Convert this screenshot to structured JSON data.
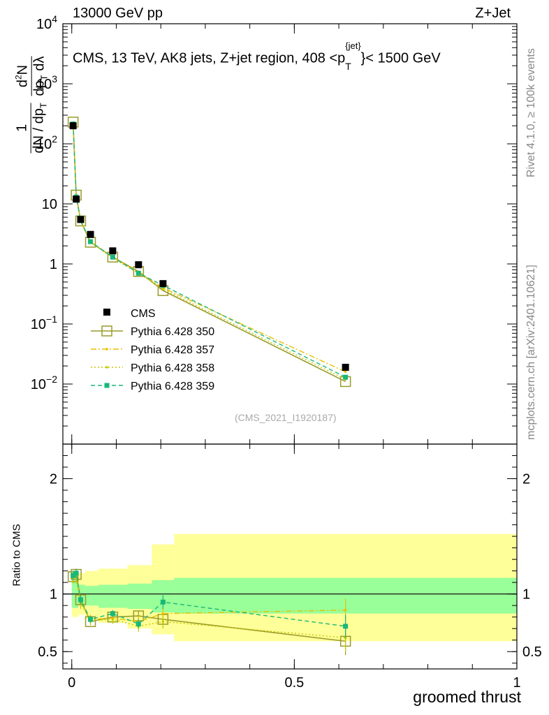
{
  "header": {
    "left": "13000 GeV pp",
    "right": "Z+Jet"
  },
  "side_labels": {
    "top": "Rivet 4.1.0, ≥ 100k events",
    "bottom": "mcplots.cern.ch [arXiv:2401.10621]"
  },
  "watermark": "(CMS_2021_I1920187)",
  "colors": {
    "cms": "#000000",
    "p350": "#9a9a2a",
    "p357": "#e8c000",
    "p358": "#c8c800",
    "p359": "#18b878",
    "band_inner": "#99ff99",
    "band_outer": "#ffff99"
  },
  "chart_data": [
    {
      "type": "line",
      "title": "CMS, 13 TeV, AK8 jets, Z+jet region, 408 <p_T^{jet}< 1500 GeV",
      "title_parts": {
        "main": "CMS, 13 TeV, AK8 jets, Z+jet region, 408 <p",
        "sup": "{jet}",
        "sub": "T",
        "tail": "}< 1500 GeV"
      },
      "ylabel": "1/dN/dpT · d²N/dpT dλ",
      "ylabel_parts": {
        "n1": "1",
        "n2": "dN / dp",
        "n2s": "T",
        "d1": "d",
        "d1s": "2",
        "d2": "N",
        "d3": "dp",
        "d3s": "T",
        "d4": "dλ"
      },
      "yscale": "log",
      "ylim": [
        0.001,
        10000
      ],
      "y_ticks": [
        0.01,
        0.1,
        1,
        10,
        100,
        1000,
        10000
      ],
      "y_tick_labels": [
        {
          "base": "10",
          "exp": "−2"
        },
        {
          "base": "10",
          "exp": "−1"
        },
        {
          "base": "1",
          "exp": ""
        },
        {
          "base": "10",
          "exp": ""
        },
        {
          "base": "10",
          "exp": "2"
        },
        {
          "base": "10",
          "exp": "3"
        },
        {
          "base": "10",
          "exp": "4"
        }
      ],
      "xlim": [
        -0.02,
        1.0
      ],
      "legend_position": "middle-left",
      "series": [
        {
          "name": "CMS",
          "style": "square-marker",
          "x": [
            0.003,
            0.01,
            0.02,
            0.042,
            0.092,
            0.15,
            0.205,
            0.615
          ],
          "y": [
            200,
            12,
            5.5,
            3.1,
            1.65,
            0.97,
            0.47,
            0.019
          ]
        },
        {
          "name": "Pythia 6.428 350",
          "style": "solid-open-square",
          "x": [
            0.003,
            0.01,
            0.02,
            0.042,
            0.092,
            0.15,
            0.205,
            0.615
          ],
          "y": [
            230,
            14,
            5.2,
            2.3,
            1.3,
            0.75,
            0.36,
            0.011
          ]
        },
        {
          "name": "Pythia 6.428 357",
          "style": "dashdot",
          "x": [
            0.003,
            0.01,
            0.02,
            0.042,
            0.092,
            0.15,
            0.205,
            0.615
          ],
          "y": [
            225,
            13.5,
            5.3,
            2.35,
            1.3,
            0.72,
            0.4,
            0.016
          ]
        },
        {
          "name": "Pythia 6.428 358",
          "style": "dotted",
          "x": [
            0.003,
            0.01,
            0.02,
            0.042,
            0.092,
            0.15,
            0.205,
            0.615
          ],
          "y": [
            220,
            13,
            5.1,
            2.3,
            1.25,
            0.7,
            0.38,
            0.012
          ]
        },
        {
          "name": "Pythia 6.428 359",
          "style": "dashed-filled-square",
          "x": [
            0.003,
            0.01,
            0.02,
            0.042,
            0.092,
            0.15,
            0.205,
            0.615
          ],
          "y": [
            215,
            13,
            5.3,
            2.35,
            1.3,
            0.7,
            0.44,
            0.013
          ]
        }
      ]
    },
    {
      "type": "line",
      "title": "",
      "ylabel": "Ratio to CMS",
      "xlabel": "groomed thrust",
      "ylim": [
        0.35,
        2.3
      ],
      "y_ticks": [
        0.5,
        1,
        2
      ],
      "y_tick_labels": [
        "0.5",
        "1",
        "2"
      ],
      "x_ticks": [
        0,
        0.5,
        1
      ],
      "x_tick_labels": [
        "0",
        "0.5",
        "1"
      ],
      "xlim": [
        -0.02,
        1.0
      ],
      "reference_line": 1,
      "bins": [
        0,
        0.005,
        0.015,
        0.03,
        0.06,
        0.125,
        0.18,
        0.23,
        1.0
      ],
      "band_inner": [
        [
          0.88,
          1.14
        ],
        [
          0.88,
          1.12
        ],
        [
          0.9,
          1.08
        ],
        [
          0.9,
          1.07
        ],
        [
          0.88,
          1.08
        ],
        [
          0.87,
          1.09
        ],
        [
          0.84,
          1.12
        ],
        [
          0.83,
          1.14
        ]
      ],
      "band_outer": [
        [
          0.8,
          1.2
        ],
        [
          0.8,
          1.18
        ],
        [
          0.82,
          1.18
        ],
        [
          0.78,
          1.2
        ],
        [
          0.75,
          1.22
        ],
        [
          0.7,
          1.25
        ],
        [
          0.65,
          1.43
        ],
        [
          0.59,
          1.52
        ]
      ],
      "series": [
        {
          "name": "Pythia 6.428 350",
          "x": [
            0.003,
            0.01,
            0.02,
            0.042,
            0.092,
            0.15,
            0.205,
            0.615
          ],
          "y": [
            1.15,
            1.17,
            0.95,
            0.76,
            0.8,
            0.81,
            0.78,
            0.59
          ],
          "err": [
            0.04,
            0.04,
            0.04,
            0.03,
            0.04,
            0.04,
            0.06,
            0.12
          ]
        },
        {
          "name": "Pythia 6.428 357",
          "x": [
            0.003,
            0.01,
            0.02,
            0.042,
            0.092,
            0.15,
            0.205,
            0.615
          ],
          "y": [
            1.15,
            1.15,
            0.93,
            0.78,
            0.79,
            0.76,
            0.83,
            0.86
          ],
          "err": [
            0.05,
            0.05,
            0.05,
            0.04,
            0.04,
            0.05,
            0.07,
            0.1
          ]
        },
        {
          "name": "Pythia 6.428 358",
          "x": [
            0.003,
            0.01,
            0.02,
            0.042,
            0.092,
            0.15,
            0.205,
            0.615
          ],
          "y": [
            1.14,
            1.14,
            0.92,
            0.77,
            0.78,
            0.72,
            0.76,
            0.62
          ],
          "err": [
            0.05,
            0.05,
            0.05,
            0.04,
            0.04,
            0.05,
            0.06,
            0.12
          ]
        },
        {
          "name": "Pythia 6.428 359",
          "x": [
            0.003,
            0.01,
            0.02,
            0.042,
            0.092,
            0.15,
            0.205,
            0.615
          ],
          "y": [
            1.16,
            1.18,
            0.95,
            0.78,
            0.83,
            0.74,
            0.93,
            0.72
          ],
          "err": [
            0.04,
            0.04,
            0.04,
            0.03,
            0.03,
            0.04,
            0.06,
            0.1
          ]
        }
      ]
    }
  ]
}
